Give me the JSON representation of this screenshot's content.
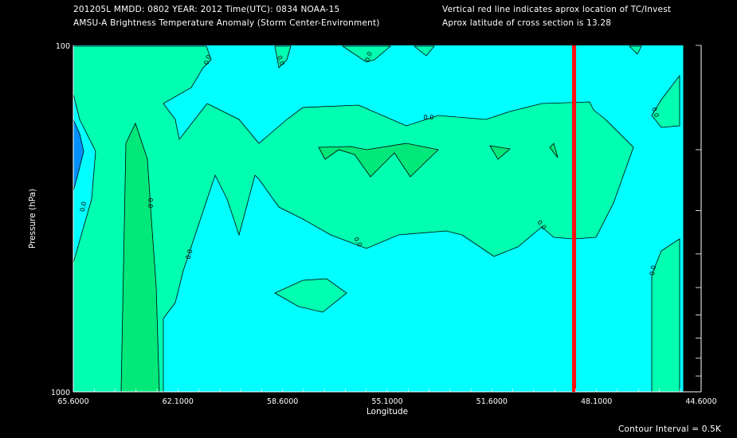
{
  "header": {
    "line1_left": "201205L  MMDD: 0802 YEAR: 2012 Time(UTC): 0834 NOAA-15",
    "line2_left": "AMSU-A Brightness Temperature Anomaly (Storm Center-Environment)",
    "line1_right": "Vertical red line indicates aprox location of TC/Invest",
    "line2_right": "Aprox latitude of cross section is 13.28"
  },
  "footer": {
    "contour_interval": "Contour Interval = 0.5K"
  },
  "colors": {
    "background": "#000000",
    "base_fill": "#00ffff",
    "level_05": "#00ffb0",
    "level_10": "#00e87a",
    "level_neg": "#0090ff",
    "storm_line": "#ff1010"
  },
  "chart_data": {
    "type": "contour",
    "title": "AMSU-A Brightness Temperature Anomaly (Storm Center-Environment)",
    "xlabel": "Longitude",
    "ylabel": "Pressure (hPa)",
    "x_ticks": [
      "65.6000",
      "62.1000",
      "58.6000",
      "55.1000",
      "51.6000",
      "48.1000",
      "44.6000"
    ],
    "x_tick_values": [
      65.6,
      62.1,
      58.6,
      55.1,
      51.6,
      48.1,
      44.6
    ],
    "xlim": [
      65.6,
      44.6
    ],
    "y_ticks": [
      "100",
      "1000"
    ],
    "ylim": [
      100,
      1000
    ],
    "y_scale": "log",
    "storm_longitude": 48.85,
    "contour_interval_K": 0.5,
    "contour_labels": [
      "0.0"
    ],
    "data_extent_lon": [
      65.6,
      45.2
    ]
  }
}
